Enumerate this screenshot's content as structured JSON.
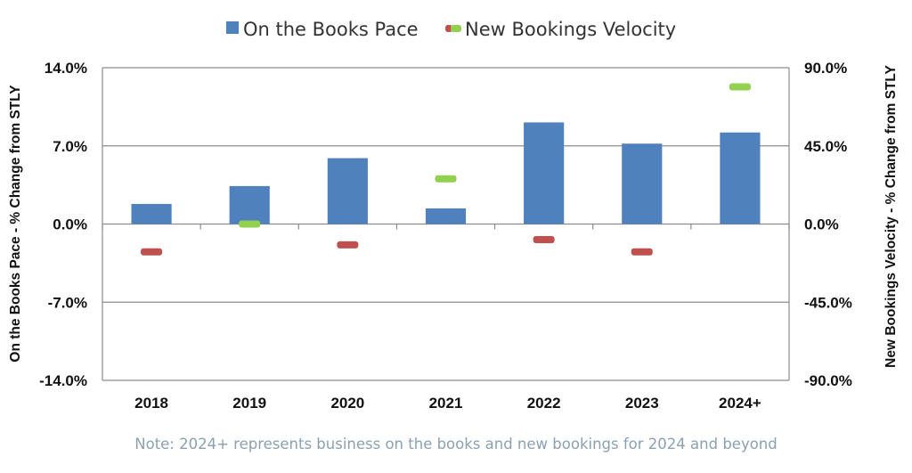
{
  "chart_data": {
    "type": "bar",
    "categories": [
      "2018",
      "2019",
      "2020",
      "2021",
      "2022",
      "2023",
      "2024+"
    ],
    "series": [
      {
        "name": "On the Books Pace",
        "kind": "bar",
        "axis": "left",
        "color": "#4f81bd",
        "values": [
          1.8,
          3.4,
          5.9,
          1.4,
          9.1,
          7.2,
          8.2
        ]
      },
      {
        "name": "New Bookings Velocity",
        "kind": "marker",
        "axis": "right",
        "color_negative": "#c0504d",
        "color_positive": "#92d050",
        "values": [
          -16,
          0,
          -12,
          26,
          -9,
          -16,
          79
        ]
      }
    ],
    "left_axis": {
      "label": "On the Books Pace - % Change from STLY",
      "ylim": [
        -14,
        14
      ],
      "ticks": [
        "14.0%",
        "7.0%",
        "0.0%",
        "-7.0%",
        "-14.0%"
      ]
    },
    "right_axis": {
      "label": "New Bookings Velocity - % Change from STLY",
      "ylim": [
        -90,
        90
      ],
      "ticks": [
        "90.0%",
        "45.0%",
        "0.0%",
        "-45.0%",
        "-90.0%"
      ]
    },
    "legend": {
      "position": "top-center",
      "items": [
        "On the Books Pace",
        "New Bookings Velocity"
      ]
    },
    "grid": true,
    "note": "Note: 2024+ represents business on the books and new bookings for 2024 and beyond"
  }
}
